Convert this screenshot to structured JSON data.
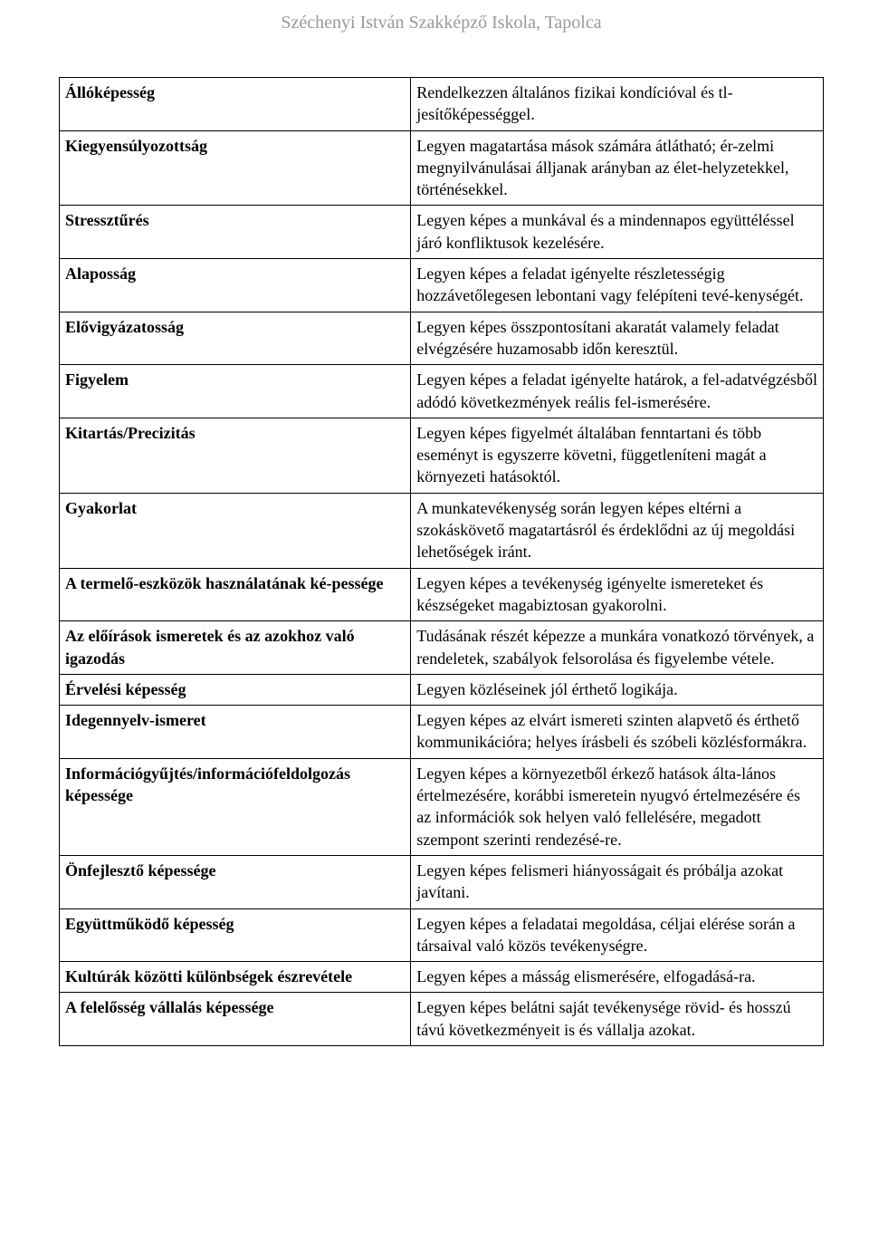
{
  "header": "Széchenyi István Szakképző Iskola, Tapolca",
  "rows": [
    {
      "label": "Állóképesség",
      "desc": "Rendelkezzen általános fizikai kondícióval és tl-jesítőképességgel."
    },
    {
      "label": "Kiegyensúlyozottság",
      "desc": "Legyen magatartása mások számára átlátható; ér-zelmi megnyilvánulásai álljanak arányban az élet-helyzetekkel, történésekkel."
    },
    {
      "label": "Stressztűrés",
      "desc": "Legyen képes a munkával és a mindennapos együttéléssel járó konfliktusok kezelésére."
    },
    {
      "label": "Alaposság",
      "desc": "Legyen képes a feladat igényelte részletességig hozzávetőlegesen lebontani vagy felépíteni tevé-kenységét."
    },
    {
      "label": "Elővigyázatosság",
      "desc": "Legyen képes összpontosítani akaratát valamely feladat elvégzésére huzamosabb időn keresztül."
    },
    {
      "label": "Figyelem",
      "desc": "Legyen képes a feladat igényelte határok, a fel-adatvégzésből adódó következmények reális fel-ismerésére."
    },
    {
      "label": "Kitartás/Precizitás",
      "desc": "Legyen képes figyelmét általában fenntartani és több eseményt is egyszerre követni, függetleníteni magát a környezeti hatásoktól."
    },
    {
      "label": "Gyakorlat",
      "desc": "A munkatevékenység során legyen képes eltérni a szokáskövető magatartásról és érdeklődni az új megoldási lehetőségek iránt."
    },
    {
      "label": "A termelő-eszközök használatának ké-pessége",
      "desc": "Legyen képes a tevékenység igényelte ismereteket és készségeket magabiztosan gyakorolni."
    },
    {
      "label": "Az előírások ismeretek és az azokhoz való igazodás",
      "desc": "Tudásának részét képezze a munkára vonatkozó törvények, a rendeletek, szabályok felsorolása és figyelembe vétele."
    },
    {
      "label": "Érvelési képesség",
      "desc": "Legyen közléseinek jól érthető logikája."
    },
    {
      "label": "Idegennyelv-ismeret",
      "desc": "Legyen képes az elvárt ismereti szinten alapvető és érthető kommunikációra; helyes írásbeli és szóbeli közlésformákra."
    },
    {
      "label": "Információgyűjtés/információfeldolgozás képessége",
      "desc": "Legyen képes a környezetből érkező hatások álta-lános értelmezésére, korábbi ismeretein nyugvó értelmezésére és az információk sok helyen való fellelésére, megadott szempont szerinti rendezésé-re."
    },
    {
      "label": "Önfejlesztő képessége",
      "desc": "Legyen képes felismeri hiányosságait és próbálja azokat javítani."
    },
    {
      "label": "Együttműködő képesség",
      "desc": "Legyen képes a feladatai megoldása, céljai elérése során a társaival való közös tevékenységre."
    },
    {
      "label": "Kultúrák közötti különbségek észrevétele",
      "desc": "Legyen képes a másság elismerésére, elfogadásá-ra."
    },
    {
      "label": "A felelősség vállalás képessége",
      "desc": "Legyen képes belátni saját tevékenysége rövid- és hosszú távú következményeit is és vállalja azokat."
    }
  ]
}
